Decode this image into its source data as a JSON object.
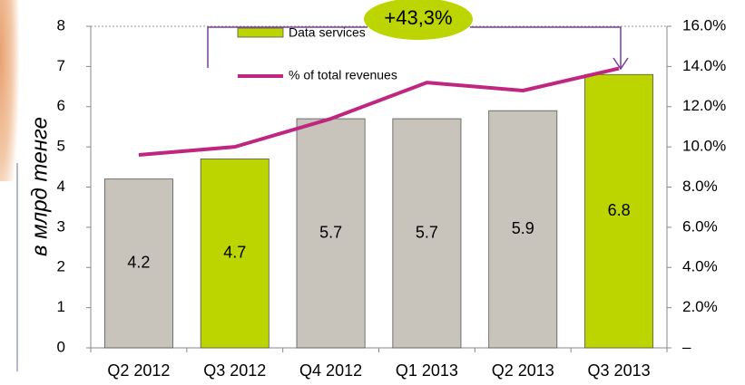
{
  "chart_data": {
    "type": "bar",
    "y_label": "в млрд тенге",
    "annotation": "+43,3%",
    "categories": [
      "Q2 2012",
      "Q3 2012",
      "Q4 2012",
      "Q1 2013",
      "Q2 2013",
      "Q3 2013"
    ],
    "series": [
      {
        "name": "Data services",
        "colors": [
          "#c8c4bc",
          "#bcd400",
          "#c8c4bc",
          "#c8c4bc",
          "#c8c4bc",
          "#bcd400"
        ],
        "color": "#bcd400",
        "values": [
          4.2,
          4.7,
          5.7,
          5.7,
          5.9,
          6.8
        ]
      },
      {
        "name": "% of total revenues",
        "type": "line",
        "axis": "y2",
        "color": "#c0267f",
        "values": [
          9.6,
          10.0,
          11.4,
          13.2,
          12.8,
          13.9
        ]
      }
    ],
    "ylim": [
      0,
      8
    ],
    "yticks": [
      0,
      1,
      2,
      3,
      4,
      5,
      6,
      7,
      8
    ],
    "y2lim": [
      0,
      16
    ],
    "y2ticks": [
      {
        "value": 0,
        "label": "–"
      },
      {
        "value": 2,
        "label": "2.0%"
      },
      {
        "value": 4,
        "label": "4.0%"
      },
      {
        "value": 6,
        "label": "6.0%"
      },
      {
        "value": 8,
        "label": "8.0%"
      },
      {
        "value": 10,
        "label": "10.0%"
      },
      {
        "value": 12,
        "label": "12.0%"
      },
      {
        "value": 14,
        "label": "14.0%"
      },
      {
        "value": 16,
        "label": "16.0%"
      }
    ]
  }
}
